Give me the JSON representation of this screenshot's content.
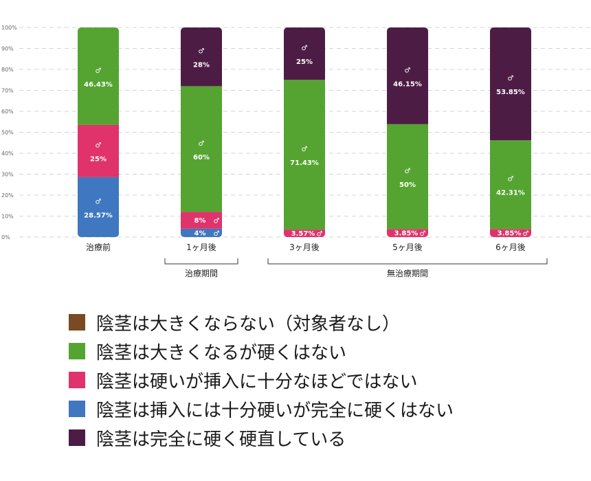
{
  "chart_data": {
    "type": "bar",
    "stacked": true,
    "categories": [
      "治療前",
      "1ヶ月後",
      "3ヶ月後",
      "5ヶ月後",
      "6ヶ月後"
    ],
    "y_ticks": [
      "0%",
      "10%",
      "20%",
      "30%",
      "40%",
      "50%",
      "60%",
      "70%",
      "80%",
      "90%",
      "100%"
    ],
    "ylim": [
      0,
      100
    ],
    "grid": true,
    "series": [
      {
        "name": "陰茎は大きくならない（対象者なし）",
        "color": "#7a4a22",
        "values": [
          0,
          0,
          0,
          0,
          0
        ],
        "labels": [
          "",
          "",
          "",
          "",
          ""
        ]
      },
      {
        "name": "陰茎は大きくなるが硬くはない",
        "color": "#55a431",
        "values": [
          46.43,
          60,
          71.43,
          50,
          42.31
        ],
        "labels": [
          "46.43%",
          "60%",
          "71.43%",
          "50%",
          "42.31%"
        ]
      },
      {
        "name": "陰茎は硬いが挿入に十分なほどではない",
        "color": "#e0336b",
        "values": [
          25,
          8,
          3.57,
          3.85,
          3.85
        ],
        "labels": [
          "25%",
          "8%",
          "3.57%",
          "3.85%",
          "3.85%"
        ]
      },
      {
        "name": "陰茎は挿入には十分硬いが完全に硬くはない",
        "color": "#3f77c0",
        "values": [
          28.57,
          4,
          0,
          0,
          0
        ],
        "labels": [
          "28.57%",
          "4%",
          "",
          "",
          ""
        ]
      },
      {
        "name": "陰茎は完全に硬く硬直している",
        "color": "#4d1c45",
        "values": [
          0,
          28,
          25,
          46.15,
          53.85
        ],
        "labels": [
          "",
          "28%",
          "25%",
          "46.15%",
          "53.85%"
        ]
      }
    ],
    "stack_order": [
      3,
      2,
      1,
      4
    ],
    "groups": [
      {
        "label": "治療期間",
        "from": 0.5,
        "to": 1.5
      },
      {
        "label": "無治療期間",
        "from": 1.5,
        "to": 4.5
      }
    ],
    "symbol": "♂"
  }
}
